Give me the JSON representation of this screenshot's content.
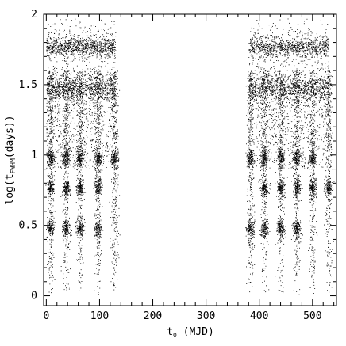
{
  "chart_data": {
    "type": "scatter",
    "title": "",
    "xlabel": {
      "main": "t",
      "sub": "0",
      "unit": " (MJD)"
    },
    "ylabel": {
      "pre": "log(t",
      "sub": "FWHM",
      "post": "(days))"
    },
    "xlim": [
      -5,
      545
    ],
    "ylim": [
      -0.07,
      2.0
    ],
    "x_ticks": [
      0,
      100,
      200,
      300,
      400,
      500
    ],
    "y_ticks": [
      0,
      0.5,
      1,
      1.5,
      2
    ],
    "x_tick_labels": [
      "0",
      "100",
      "200",
      "300",
      "400",
      "500"
    ],
    "y_tick_labels": [
      "0",
      "0.5",
      "1",
      "1.5",
      "2"
    ],
    "grid": false,
    "legend": "none",
    "point_color": "#000000",
    "clusters": [
      {
        "x_range": [
          0,
          130
        ],
        "y_center": 1.77,
        "spread": 0.035,
        "density": "high"
      },
      {
        "x_range": [
          0,
          130
        ],
        "y_center": 1.48,
        "spread": 0.04,
        "density": "high"
      },
      {
        "x_range": [
          380,
          530
        ],
        "y_center": 1.77,
        "spread": 0.035,
        "density": "high"
      },
      {
        "x_range": [
          380,
          530
        ],
        "y_center": 1.48,
        "spread": 0.04,
        "density": "high"
      }
    ],
    "columns": [
      {
        "x": 8,
        "band_values": [
          0.48,
          0.77,
          0.98
        ]
      },
      {
        "x": 37,
        "band_values": [
          0.48,
          0.77,
          0.98
        ]
      },
      {
        "x": 63,
        "band_values": [
          0.48,
          0.77,
          0.98
        ]
      },
      {
        "x": 97,
        "band_values": [
          0.48,
          0.77,
          0.98
        ]
      },
      {
        "x": 128,
        "band_values": [
          0.98
        ]
      },
      {
        "x": 383,
        "band_values": [
          0.48,
          0.98
        ]
      },
      {
        "x": 409,
        "band_values": [
          0.48,
          0.77,
          0.98
        ]
      },
      {
        "x": 440,
        "band_values": [
          0.48,
          0.77,
          0.98
        ]
      },
      {
        "x": 470,
        "band_values": [
          0.48,
          0.77,
          0.98
        ]
      },
      {
        "x": 500,
        "band_values": [
          0.77,
          0.98
        ]
      },
      {
        "x": 530,
        "band_values": [
          0.77
        ]
      }
    ]
  }
}
